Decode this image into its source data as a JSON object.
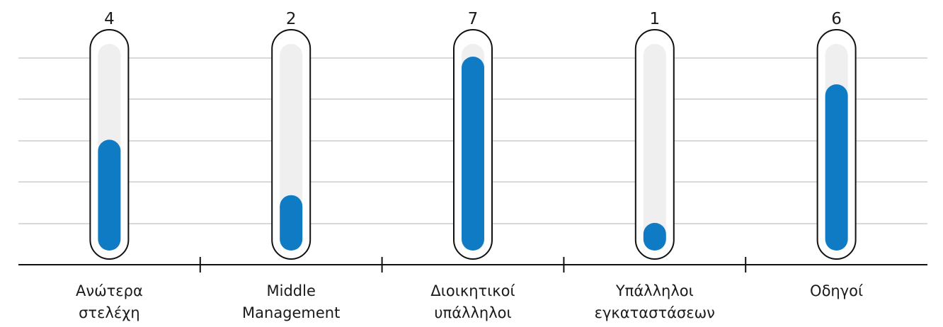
{
  "chart_data": {
    "type": "bar",
    "title": "",
    "xlabel": "",
    "ylabel": "",
    "categories": [
      [
        "Ανώτερα",
        "στελέχη"
      ],
      [
        "Middle",
        "Management"
      ],
      [
        "Διοικητικοί",
        "υπάλληλοι"
      ],
      [
        "Υπάλληλοι",
        "εγκαταστάσεων"
      ],
      [
        "Οδηγοί"
      ]
    ],
    "values": [
      4,
      2,
      7,
      1,
      6
    ],
    "value_labels": [
      "4",
      "2",
      "7",
      "1",
      "6"
    ],
    "ylim": [
      0,
      7
    ],
    "grid": true,
    "legend": "none",
    "colors": {
      "fill": "#0f7bc4",
      "track": "#efefef",
      "outline": "#111111",
      "grid": "#b3b3b3",
      "axis": "#111111",
      "text": "#1a1a1a"
    }
  }
}
